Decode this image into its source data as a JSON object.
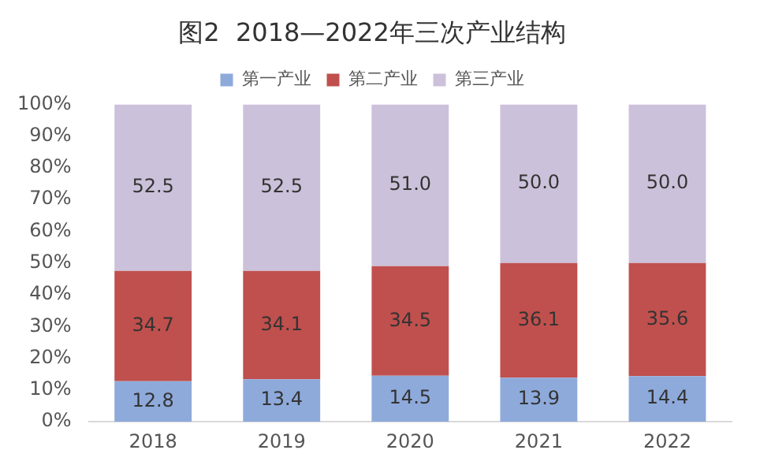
{
  "chart_data": {
    "type": "bar",
    "title": "图2  2018—2022年三次产业结构",
    "categories": [
      "2018",
      "2019",
      "2020",
      "2021",
      "2022"
    ],
    "stacked": true,
    "legend": "top",
    "grid": false,
    "series": [
      {
        "name": "第一产业",
        "color": "#8eaadb",
        "values": [
          12.8,
          13.4,
          14.5,
          13.9,
          14.4
        ],
        "value_labels": [
          "12.8",
          "13.4",
          "14.5",
          "13.9",
          "14.4"
        ]
      },
      {
        "name": "第二产业",
        "color": "#c0504d",
        "values": [
          34.7,
          34.1,
          34.5,
          36.1,
          35.6
        ],
        "value_labels": [
          "34.7",
          "34.1",
          "34.5",
          "36.1",
          "35.6"
        ]
      },
      {
        "name": "第三产业",
        "color": "#ccc1da",
        "values": [
          52.5,
          52.5,
          51.0,
          50.0,
          50.0
        ],
        "value_labels": [
          "52.5",
          "52.5",
          "51.0",
          "50.0",
          "50.0"
        ]
      }
    ],
    "ylim": [
      0,
      100
    ],
    "yticks": [
      {
        "value": 0,
        "label": "0%"
      },
      {
        "value": 10,
        "label": "10%"
      },
      {
        "value": 20,
        "label": "20%"
      },
      {
        "value": 30,
        "label": "30%"
      },
      {
        "value": 40,
        "label": "40%"
      },
      {
        "value": 50,
        "label": "50%"
      },
      {
        "value": 60,
        "label": "60%"
      },
      {
        "value": 70,
        "label": "70%"
      },
      {
        "value": 80,
        "label": "80%"
      },
      {
        "value": 90,
        "label": "90%"
      },
      {
        "value": 100,
        "label": "100%"
      }
    ]
  }
}
